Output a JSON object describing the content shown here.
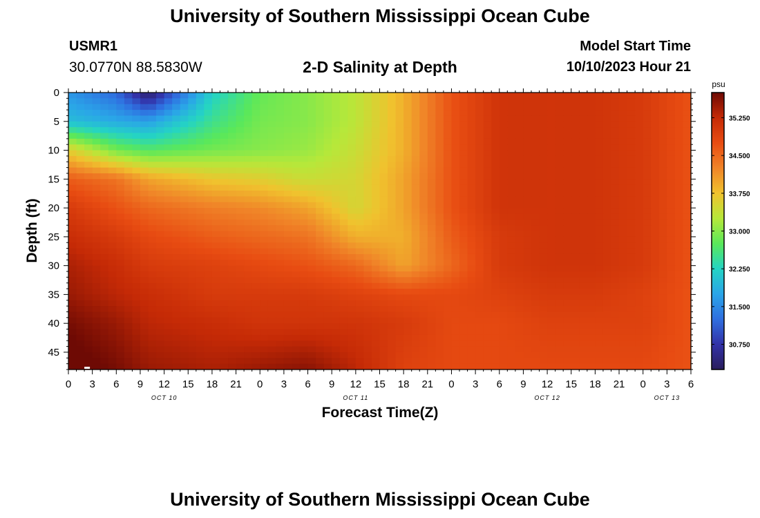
{
  "page": {
    "title": "University of Southern Mississippi Ocean Cube",
    "footer_title": "University of Southern Mississippi Ocean Cube",
    "station_id": "USMR1",
    "coordinates": "30.0770N  88.5830W",
    "subtitle": "2-D Salinity at Depth",
    "model_start_label": "Model Start Time",
    "model_start_value": "10/10/2023 Hour 21"
  },
  "chart_data": {
    "type": "heatmap",
    "title": "2-D Salinity at Depth",
    "xlabel": "Forecast Time(Z)",
    "ylabel": "Depth (ft)",
    "x_hours_range": [
      0,
      78
    ],
    "y_range": [
      0,
      48
    ],
    "x_tick_labels": [
      "0",
      "3",
      "6",
      "9",
      "12",
      "15",
      "18",
      "21",
      "0",
      "3",
      "6",
      "9",
      "12",
      "15",
      "18",
      "21",
      "0",
      "3",
      "6",
      "9",
      "12",
      "15",
      "18",
      "21",
      "0",
      "3",
      "6"
    ],
    "y_tick_labels": [
      "0",
      "5",
      "10",
      "15",
      "20",
      "25",
      "30",
      "35",
      "40",
      "45"
    ],
    "day_labels": [
      {
        "label": "OCT 10",
        "hour": 12
      },
      {
        "label": "OCT 11",
        "hour": 36
      },
      {
        "label": "OCT 12",
        "hour": 60
      },
      {
        "label": "OCT 13",
        "hour": 75
      }
    ],
    "colorbar": {
      "unit": "psu",
      "min": 30.25,
      "max": 35.75,
      "tick_labels": [
        "35.250",
        "34.500",
        "33.750",
        "33.000",
        "32.250",
        "31.500",
        "30.750"
      ],
      "tick_values": [
        35.25,
        34.5,
        33.75,
        33.0,
        32.25,
        31.5,
        30.75
      ],
      "stops": [
        {
          "value": 30.25,
          "color": "#2a1d5c"
        },
        {
          "value": 30.75,
          "color": "#3232a8"
        },
        {
          "value": 31.25,
          "color": "#2f6fe0"
        },
        {
          "value": 31.75,
          "color": "#2aa5e8"
        },
        {
          "value": 32.25,
          "color": "#24d4c4"
        },
        {
          "value": 32.75,
          "color": "#5ae85a"
        },
        {
          "value": 33.25,
          "color": "#b6e83a"
        },
        {
          "value": 33.75,
          "color": "#f0c22e"
        },
        {
          "value": 34.25,
          "color": "#f08428"
        },
        {
          "value": 34.75,
          "color": "#e84c12"
        },
        {
          "value": 35.25,
          "color": "#c52a06"
        },
        {
          "value": 35.75,
          "color": "#6e0a04"
        }
      ]
    },
    "salinity_grid": {
      "x_hours": [
        0,
        6,
        10,
        18,
        24,
        30,
        36,
        42,
        48,
        54,
        60,
        66,
        72,
        78
      ],
      "y_depths_ft": [
        0,
        5,
        10,
        15,
        20,
        25,
        30,
        35,
        40,
        48
      ],
      "values_psu": [
        [
          31.6,
          31.2,
          30.3,
          32.2,
          32.8,
          33.0,
          33.3,
          33.9,
          34.7,
          35.1,
          35.1,
          35.1,
          35.0,
          34.7
        ],
        [
          32.0,
          31.8,
          31.7,
          32.5,
          32.9,
          33.0,
          33.3,
          33.9,
          34.7,
          35.1,
          35.1,
          35.1,
          35.0,
          34.7
        ],
        [
          33.6,
          32.9,
          32.7,
          32.9,
          33.0,
          33.1,
          33.4,
          33.9,
          34.7,
          35.1,
          35.1,
          35.1,
          35.0,
          34.7
        ],
        [
          34.6,
          34.4,
          34.0,
          33.7,
          33.6,
          33.4,
          33.5,
          34.0,
          34.7,
          35.1,
          35.1,
          35.1,
          35.0,
          34.7
        ],
        [
          35.0,
          34.7,
          34.5,
          34.3,
          34.2,
          34.0,
          33.5,
          34.0,
          34.7,
          35.1,
          35.1,
          35.1,
          35.0,
          34.7
        ],
        [
          35.2,
          35.0,
          34.8,
          34.6,
          34.5,
          34.4,
          33.9,
          33.9,
          34.6,
          35.0,
          35.1,
          35.1,
          35.0,
          34.7
        ],
        [
          35.4,
          35.2,
          35.0,
          34.9,
          34.8,
          34.7,
          34.5,
          34.0,
          34.5,
          35.0,
          35.1,
          35.1,
          35.0,
          34.7
        ],
        [
          35.5,
          35.3,
          35.2,
          35.0,
          35.0,
          35.0,
          34.9,
          34.8,
          34.8,
          34.9,
          35.0,
          35.0,
          34.9,
          34.7
        ],
        [
          35.7,
          35.5,
          35.3,
          35.2,
          35.1,
          35.1,
          35.1,
          35.0,
          34.8,
          34.8,
          34.9,
          34.9,
          34.9,
          34.7
        ],
        [
          35.9,
          35.7,
          35.5,
          35.4,
          35.5,
          35.6,
          35.3,
          34.9,
          34.8,
          34.8,
          34.8,
          34.8,
          34.8,
          34.7
        ]
      ]
    },
    "cell_size": {
      "hours": 1,
      "feet": 1
    }
  }
}
